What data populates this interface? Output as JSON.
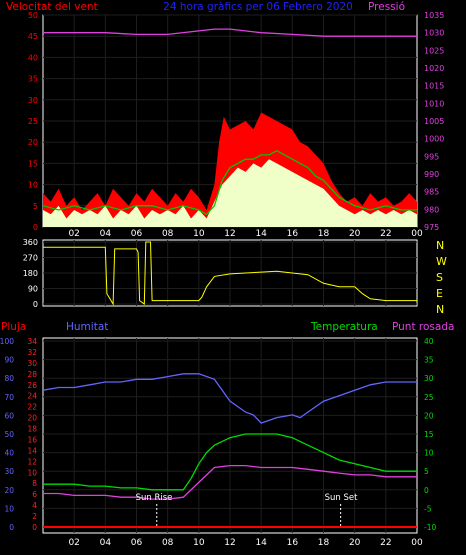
{
  "header": {
    "left": "Velocitat del vent",
    "center": "24 hora gràfics per  06 Febrero 2020",
    "right": "Pressió"
  },
  "x_ticks": [
    "02",
    "04",
    "06",
    "08",
    "10",
    "12",
    "14",
    "16",
    "18",
    "20",
    "22",
    "00"
  ],
  "direction_letters": [
    "N",
    "W",
    "S",
    "E",
    "N"
  ],
  "bottom_labels": {
    "pluja": "Pluja",
    "humitat": "Humitat",
    "temperatura": "Temperatura",
    "punt_rosada": "Punt rosada"
  },
  "annotations": {
    "sun_rise": "Sun Rise",
    "sun_set": "Sun Set"
  },
  "colors": {
    "grid": "#1e1e1e",
    "axis": "#ffffff",
    "wind_gust": "#ff0000",
    "wind_avg": "#00c800",
    "wind_speed": "#f0ffc8",
    "pressure": "#e040e0",
    "direction": "#ffff00",
    "humidity": "#6464ff",
    "temperature": "#00dc00",
    "dewpoint": "#e040e0",
    "rain": "#ff0000",
    "title": "#2020ff"
  },
  "chart_data": [
    {
      "type": "area",
      "x_unit": "hours",
      "xlim": [
        0,
        24
      ],
      "y_left": {
        "label": "Velocitat del vent",
        "ylim": [
          0,
          50
        ],
        "ticks": [
          0,
          5,
          10,
          15,
          20,
          25,
          30,
          35,
          40,
          45,
          50
        ]
      },
      "y_right": {
        "label": "Pressió",
        "ylim": [
          975,
          1035
        ],
        "ticks": [
          975,
          980,
          985,
          990,
          995,
          1000,
          1005,
          1010,
          1015,
          1020,
          1025,
          1030,
          1035
        ]
      },
      "series": [
        {
          "name": "gust",
          "x": [
            0,
            0.5,
            1,
            1.5,
            2,
            2.5,
            3,
            3.5,
            4,
            4.5,
            5,
            5.5,
            6,
            6.5,
            7,
            7.5,
            8,
            8.5,
            9,
            9.5,
            10,
            10.5,
            11,
            11.3,
            11.6,
            12,
            12.5,
            13,
            13.5,
            14,
            14.5,
            15,
            15.5,
            16,
            16.5,
            17,
            17.5,
            18,
            18.5,
            19,
            19.5,
            20,
            20.5,
            21,
            21.5,
            22,
            22.5,
            23,
            23.5,
            24
          ],
          "values": [
            8,
            6,
            9,
            5,
            7,
            4,
            6,
            8,
            5,
            9,
            7,
            5,
            8,
            6,
            9,
            7,
            5,
            8,
            6,
            9,
            7,
            4,
            10,
            20,
            26,
            23,
            24,
            25,
            23,
            27,
            26,
            25,
            24,
            23,
            20,
            19,
            17,
            15,
            11,
            8,
            6,
            7,
            5,
            8,
            6,
            7,
            5,
            6,
            8,
            6
          ]
        },
        {
          "name": "average",
          "x": [
            0,
            1,
            2,
            3,
            4,
            5,
            6,
            7,
            8,
            9,
            10,
            10.5,
            11,
            11.5,
            12,
            12.5,
            13,
            13.5,
            14,
            14.5,
            15,
            15.5,
            16,
            16.5,
            17,
            17.5,
            18,
            18.5,
            19,
            20,
            21,
            22,
            23,
            24
          ],
          "values": [
            5,
            4,
            5,
            4,
            5,
            4,
            5,
            5,
            4,
            5,
            4,
            3,
            5,
            11,
            14,
            15,
            16,
            16,
            17,
            17,
            18,
            17,
            16,
            15,
            14,
            12,
            11,
            9,
            7,
            5,
            4,
            5,
            4,
            4
          ]
        },
        {
          "name": "wind_speed",
          "x": [
            0,
            0.5,
            1,
            1.5,
            2,
            2.5,
            3,
            3.5,
            4,
            4.5,
            5,
            5.5,
            6,
            6.5,
            7,
            7.5,
            8,
            8.5,
            9,
            9.5,
            10,
            10.5,
            11,
            11.5,
            12,
            12.5,
            13,
            13.5,
            14,
            14.5,
            15,
            15.5,
            16,
            16.5,
            17,
            17.5,
            18,
            18.5,
            19,
            19.5,
            20,
            20.5,
            21,
            21.5,
            22,
            22.5,
            23,
            23.5,
            24
          ],
          "values": [
            4,
            3,
            5,
            2,
            4,
            3,
            4,
            3,
            5,
            2,
            4,
            3,
            5,
            2,
            4,
            3,
            4,
            3,
            5,
            2,
            4,
            2,
            6,
            10,
            12,
            14,
            13,
            15,
            14,
            16,
            15,
            14,
            13,
            12,
            11,
            10,
            9,
            7,
            5,
            4,
            3,
            4,
            3,
            4,
            3,
            4,
            3,
            4,
            3
          ]
        },
        {
          "name": "pressure",
          "x": [
            0,
            2,
            4,
            6,
            8,
            10,
            11,
            12,
            14,
            16,
            18,
            20,
            22,
            24
          ],
          "values": [
            1030,
            1030,
            1030,
            1029.5,
            1029.5,
            1030.5,
            1031,
            1031,
            1030,
            1029.5,
            1029,
            1029,
            1029,
            1029
          ]
        }
      ]
    },
    {
      "type": "line",
      "x_unit": "hours",
      "xlim": [
        0,
        24
      ],
      "ylim": [
        0,
        360
      ],
      "y_ticks": [
        0,
        90,
        180,
        270,
        360
      ],
      "series": [
        {
          "name": "direction",
          "x": [
            0,
            2,
            3,
            4,
            4.1,
            4.5,
            4.6,
            5,
            5.5,
            6,
            6.1,
            6.2,
            6.5,
            6.6,
            6.9,
            7,
            7.3,
            7.4,
            8,
            9,
            10,
            10.2,
            10.5,
            11,
            12,
            13,
            14,
            15,
            16,
            17,
            18,
            19,
            20,
            20.5,
            21,
            22,
            23,
            24
          ],
          "values": [
            330,
            330,
            330,
            330,
            60,
            0,
            320,
            320,
            320,
            320,
            300,
            20,
            0,
            360,
            360,
            20,
            20,
            20,
            20,
            20,
            20,
            40,
            100,
            160,
            175,
            180,
            185,
            190,
            180,
            170,
            120,
            100,
            100,
            60,
            30,
            20,
            20,
            20
          ]
        }
      ]
    },
    {
      "type": "line",
      "x_unit": "hours",
      "xlim": [
        0,
        24
      ],
      "axes": {
        "pluja": {
          "label": "Pluja",
          "ylim": [
            0,
            100
          ],
          "ticks": [
            0,
            10,
            20,
            30,
            40,
            50,
            60,
            70,
            80,
            90,
            100
          ]
        },
        "humitat": {
          "label": "Humitat",
          "ylim": [
            0,
            34
          ],
          "ticks": [
            0,
            2,
            4,
            6,
            8,
            10,
            12,
            14,
            16,
            18,
            20,
            22,
            24,
            26,
            28,
            30,
            32,
            34
          ]
        },
        "temperatura": {
          "label": "Temperatura",
          "ylim": [
            -10,
            40
          ],
          "ticks": [
            -10,
            -5,
            0,
            5,
            10,
            15,
            20,
            25,
            30,
            35,
            40
          ]
        }
      },
      "series": [
        {
          "name": "humidity",
          "axis": "humitat",
          "x": [
            0,
            1,
            2,
            3,
            4,
            5,
            6,
            7,
            8,
            9,
            10,
            11,
            11.5,
            12,
            13,
            13.5,
            14,
            15,
            16,
            16.5,
            17,
            18,
            19,
            20,
            21,
            22,
            23,
            24
          ],
          "values": [
            25,
            25.5,
            25.5,
            26,
            26.5,
            26.5,
            27,
            27,
            27.5,
            28,
            28,
            27,
            25,
            23,
            21,
            20.5,
            19,
            20,
            20.5,
            20,
            21,
            23,
            24,
            25,
            26,
            26.5,
            26.5,
            26.5
          ]
        },
        {
          "name": "temperature",
          "axis": "temperatura",
          "x": [
            0,
            1,
            2,
            3,
            4,
            5,
            6,
            7,
            8,
            9,
            9.5,
            10,
            10.5,
            11,
            12,
            13,
            14,
            15,
            16,
            17,
            18,
            19,
            20,
            21,
            22,
            23,
            24
          ],
          "values": [
            1.5,
            1.5,
            1.5,
            1,
            1,
            0.5,
            0.5,
            0,
            0,
            0,
            3,
            7,
            10,
            12,
            14,
            15,
            15,
            15,
            14,
            12,
            10,
            8,
            7,
            6,
            5,
            5,
            5
          ]
        },
        {
          "name": "dewpoint",
          "axis": "temperatura",
          "x": [
            0,
            1,
            2,
            3,
            4,
            5,
            6,
            7,
            8,
            9,
            10,
            11,
            12,
            13,
            14,
            15,
            16,
            17,
            18,
            19,
            20,
            21,
            22,
            23,
            24
          ],
          "values": [
            -1,
            -1,
            -1.5,
            -1.5,
            -1.5,
            -2,
            -2,
            -2.5,
            -2.5,
            -2,
            2,
            6,
            6.5,
            6.5,
            6,
            6,
            6,
            5.5,
            5,
            4.5,
            4,
            4,
            3.5,
            3.5,
            3.5
          ]
        },
        {
          "name": "rain",
          "axis": "pluja",
          "x": [
            0,
            24
          ],
          "values": [
            0,
            0
          ]
        }
      ],
      "markers": {
        "sun_rise_hour": 7.3,
        "sun_set_hour": 19.1
      }
    }
  ]
}
